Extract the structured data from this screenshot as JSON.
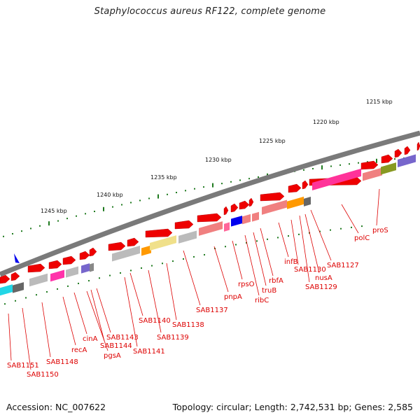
{
  "title": "Staphylococcus aureus RF122, complete genome",
  "footer": {
    "accession": "Accession: NC_007622",
    "summary": "Topology: circular; Length: 2,742,531 bp; Genes: 2,585"
  },
  "colors": {
    "backbone": "#7a7a7a",
    "gene_arrow": "#ee0000",
    "label": "#dd0000",
    "tick": "#1f7a1f",
    "navigator": "#0000ee"
  },
  "kbp_labels": [
    "1245 kbp",
    "1240 kbp",
    "1235 kbp",
    "1230 kbp",
    "1225 kbp",
    "1220 kbp",
    "1215 kbp"
  ],
  "gene_labels": [
    "SAB1151",
    "SAB1150",
    "SAB1148",
    "recA",
    "cinA",
    "SAB1143",
    "SAB1144",
    "pgsA",
    "SAB1141",
    "SAB1140",
    "SAB1139",
    "SAB1138",
    "SAB1137",
    "pnpA",
    "rpsO",
    "ribC",
    "truB",
    "rbfA",
    "infB",
    "SAB1130",
    "SAB1129",
    "nusA",
    "SAB1127",
    "polC",
    "proS"
  ]
}
